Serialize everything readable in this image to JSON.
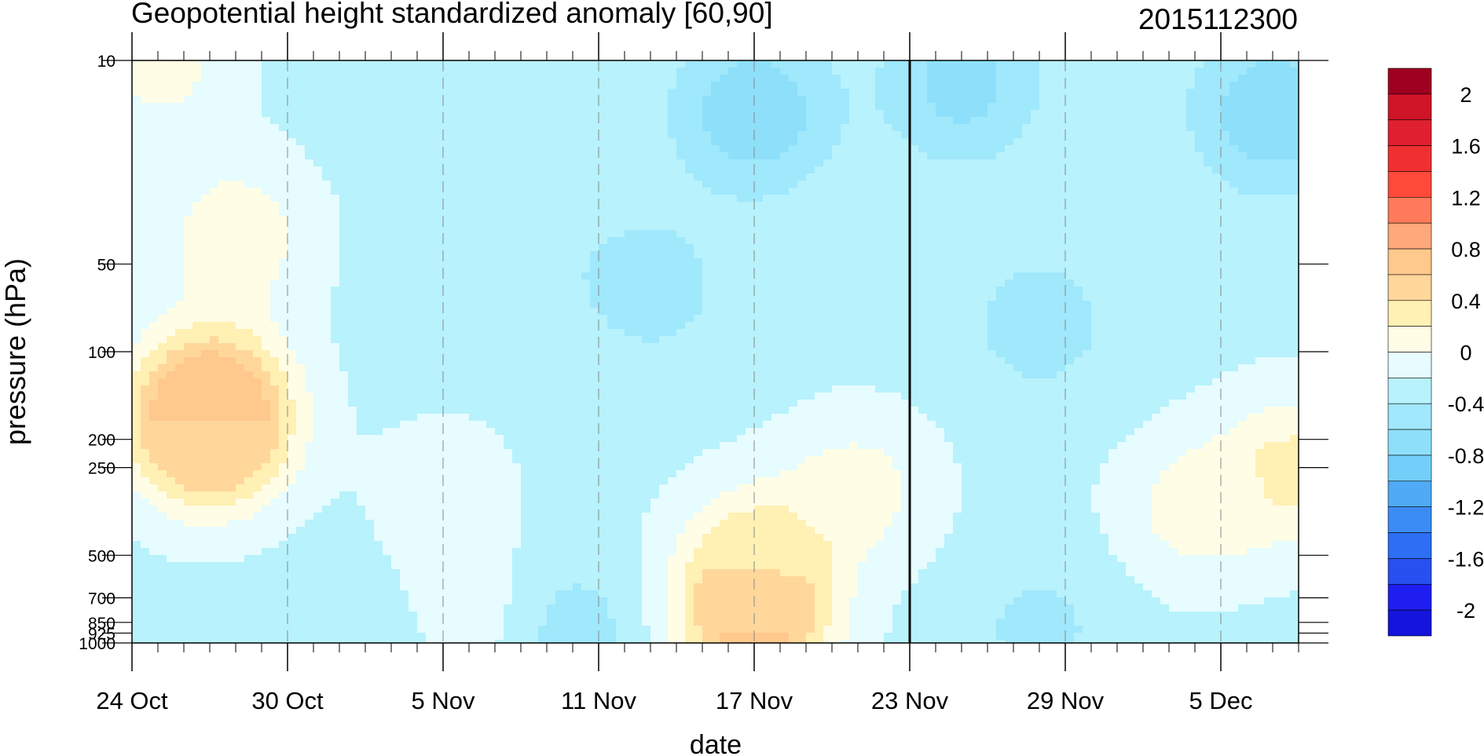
{
  "chart_data": {
    "type": "heatmap",
    "title": "Geopotential height standardized anomaly [60,90]",
    "subtitle": "2015112300",
    "xlabel": "date",
    "ylabel": "pressure (hPa)",
    "x_axis": {
      "type": "date",
      "range": [
        "2015-10-24",
        "2015-12-08"
      ],
      "tick_labels": [
        "24 Oct",
        "30 Oct",
        "5 Nov",
        "11 Nov",
        "17 Nov",
        "23 Nov",
        "29 Nov",
        "5 Dec"
      ],
      "tick_dates": [
        "2015-10-24",
        "2015-10-30",
        "2015-11-05",
        "2015-11-11",
        "2015-11-17",
        "2015-11-23",
        "2015-11-29",
        "2015-12-05"
      ]
    },
    "y_axis": {
      "scale": "log",
      "reversed": true,
      "range": [
        1000,
        10
      ],
      "tick_values": [
        10,
        50,
        100,
        200,
        250,
        500,
        700,
        850,
        925,
        1000
      ],
      "tick_labels": [
        "10",
        "50",
        "100",
        "200",
        "250",
        "500",
        "700",
        "850",
        "925",
        "1000"
      ]
    },
    "vertical_marker_date": "2015-11-23",
    "colorbar": {
      "levels": [
        -2.2,
        -2,
        -1.8,
        -1.6,
        -1.4,
        -1.2,
        -1,
        -0.8,
        -0.6,
        -0.4,
        -0.2,
        0,
        0.2,
        0.4,
        0.6,
        0.8,
        1,
        1.2,
        1.4,
        1.6,
        1.8,
        2,
        2.2
      ],
      "colors": [
        "#1414dc",
        "#1e1ef0",
        "#2850f0",
        "#2d6ef5",
        "#3c8cf5",
        "#50aaf5",
        "#74cefa",
        "#8ee0fa",
        "#a0e8fc",
        "#b8f2fc",
        "#e6fcff",
        "#fffde6",
        "#fff0b4",
        "#ffd79b",
        "#ffc88c",
        "#ffa87a",
        "#ff7a5a",
        "#ff4a3a",
        "#f03030",
        "#e02030",
        "#d01428",
        "#a00020"
      ],
      "tick_labels": [
        "2",
        "1.6",
        "1.2",
        "0.8",
        "0.4",
        "0",
        "-0.4",
        "-0.8",
        "-1.2",
        "-1.6",
        "-2"
      ],
      "tick_values": [
        2,
        1.6,
        1.2,
        0.8,
        0.4,
        0,
        -0.4,
        -0.8,
        -1.2,
        -1.6,
        -2
      ]
    },
    "contour_fields": [
      {
        "value": -0.2,
        "region": "broad cool background, most of domain below 0"
      },
      {
        "level": 0,
        "date": "2015-10-27",
        "pressure": 150,
        "value": 0.75,
        "note": "warm core late Oct"
      },
      {
        "date": "2015-10-27",
        "pressure": 200,
        "value": 0.45
      },
      {
        "date": "2015-10-28",
        "pressure": 40,
        "value": 0.15
      },
      {
        "date": "2015-10-25",
        "pressure": 10,
        "value": 0.1
      },
      {
        "date": "2015-11-05",
        "pressure": 300,
        "value": -0.1
      },
      {
        "date": "2015-11-05",
        "pressure": 800,
        "value": 0.1
      },
      {
        "date": "2015-11-17",
        "pressure": 850,
        "value": 0.75
      },
      {
        "date": "2015-11-17",
        "pressure": 500,
        "value": 0.2
      },
      {
        "date": "2015-11-21",
        "pressure": 300,
        "value": 0.1
      },
      {
        "date": "2015-12-04",
        "pressure": 350,
        "value": 0.1
      },
      {
        "date": "2015-12-08",
        "pressure": 250,
        "value": 0.25
      },
      {
        "date": "2015-11-17",
        "pressure": 15,
        "value": -0.8
      },
      {
        "date": "2015-11-13",
        "pressure": 60,
        "value": -0.5
      },
      {
        "date": "2015-11-08",
        "pressure": 40,
        "value": -0.35
      },
      {
        "date": "2015-11-28",
        "pressure": 80,
        "value": -0.5
      },
      {
        "date": "2015-12-07",
        "pressure": 15,
        "value": -0.8
      },
      {
        "date": "2015-11-25",
        "pressure": 12,
        "value": -0.7
      },
      {
        "date": "2015-11-03",
        "pressure": 900,
        "value": -0.5
      },
      {
        "date": "2015-11-10",
        "pressure": 930,
        "value": -0.5
      },
      {
        "date": "2015-11-28",
        "pressure": 900,
        "value": -0.45
      }
    ]
  }
}
